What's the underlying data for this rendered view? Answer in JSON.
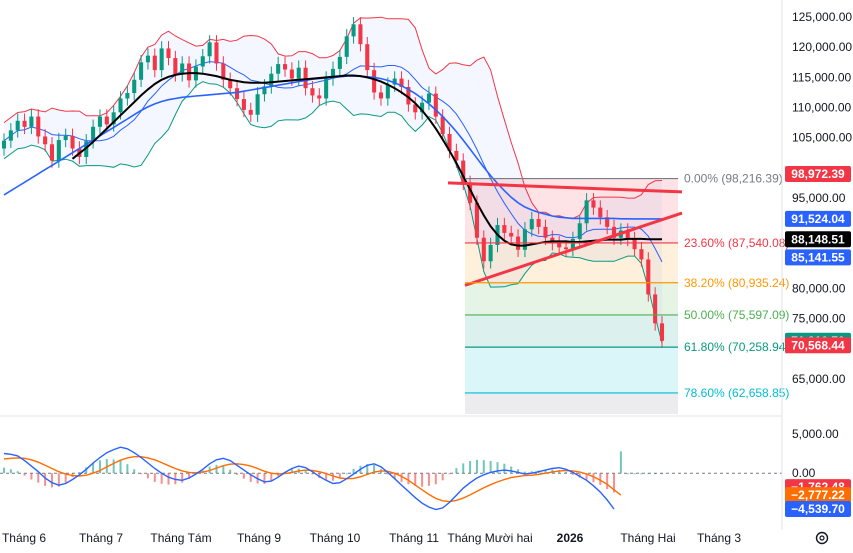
{
  "chart_data": {
    "type": "line",
    "subtype": "candlestick-with-indicators",
    "price_ticks": [
      "125,000.00",
      "120,000.00",
      "115,000.00",
      "110,000.00",
      "105,000.00",
      "95,000.00",
      "80,000.00",
      "75,000.00",
      "65,000.00"
    ],
    "price_tick_values": [
      125000,
      120000,
      115000,
      110000,
      105000,
      95000,
      80000,
      75000,
      65000
    ],
    "price_range": [
      59500,
      127000
    ],
    "time_labels": [
      "Tháng 6",
      "Tháng 7",
      "Tháng Tám",
      "Tháng 9",
      "Tháng 10",
      "Tháng 11",
      "Tháng Mười hai",
      "2026",
      "Tháng Hai",
      "Tháng 3"
    ],
    "time_label_bold": [
      false,
      false,
      false,
      false,
      false,
      false,
      false,
      true,
      false,
      false
    ],
    "fibonacci": [
      {
        "label": "0.00% (98,216.39)",
        "value": 98216.39,
        "color": "#787b86"
      },
      {
        "label": "23.60% (87,540.08)",
        "value": 87540.08,
        "color": "#f23645"
      },
      {
        "label": "38.20% (80,935.24)",
        "value": 80935.24,
        "color": "#ff9800"
      },
      {
        "label": "50.00% (75,597.09)",
        "value": 75597.09,
        "color": "#4caf50"
      },
      {
        "label": "61.80% (70,258.94)",
        "value": 70258.94,
        "color": "#089981"
      },
      {
        "label": "78.60% (62,658.85)",
        "value": 62658.85,
        "color": "#00bcd4"
      }
    ],
    "price_badges": [
      {
        "text": "98,972.39",
        "value": 98972.39,
        "bg": "#f23645"
      },
      {
        "text": "91,524.04",
        "value": 91524.04,
        "bg": "#2962ff"
      },
      {
        "text": "88,148.51",
        "value": 88148.51,
        "bg": "#000000"
      },
      {
        "text": "85,141.55",
        "value": 85141.55,
        "bg": "#2962ff"
      },
      {
        "text": "71,310.70",
        "value": 71310.7,
        "bg": "#089981"
      },
      {
        "text": "70,568.44",
        "value": 70568.44,
        "bg": "#f23645"
      }
    ],
    "trendlines": [
      {
        "from": {
          "x": "Tháng 11",
          "y": 97500
        },
        "to": {
          "x": "Tháng 3",
          "y": 96000
        },
        "color": "#f23645"
      },
      {
        "from": {
          "x": "Tháng Mười hai",
          "y": 80500
        },
        "to": {
          "x": "Tháng 3",
          "y": 92500
        },
        "color": "#f23645"
      }
    ],
    "candles_close": [
      104500,
      106200,
      107800,
      106800,
      108500,
      105200,
      103900,
      101200,
      104600,
      105300,
      103200,
      101800,
      104400,
      106800,
      108500,
      107200,
      109200,
      111500,
      112400,
      114600,
      117500,
      118600,
      116200,
      119800,
      118200,
      115500,
      117300,
      114500,
      116800,
      118500,
      120800,
      117300,
      114600,
      113200,
      111400,
      109600,
      108800,
      112200,
      113500,
      115600,
      117200,
      116300,
      114800,
      116600,
      113200,
      112000,
      111500,
      114800,
      116400,
      118400,
      121800,
      123800,
      120500,
      116200,
      112500,
      111500,
      113800,
      114800,
      113400,
      110500,
      109200,
      110800,
      112300,
      108500,
      105600,
      102800,
      101200,
      97500,
      94200,
      88400,
      84500,
      87200,
      90500,
      89200,
      88600,
      86400,
      89800,
      91500,
      90200,
      88400,
      87500,
      86800,
      86500,
      88200,
      90800,
      94600,
      93400,
      91800,
      90200,
      88400,
      89600,
      88200,
      86500,
      84800,
      79000,
      74200,
      71310
    ],
    "candles_open": [
      103200,
      104500,
      106200,
      107800,
      106800,
      108500,
      105200,
      103900,
      101200,
      104600,
      105300,
      103200,
      101800,
      104400,
      106800,
      108500,
      107200,
      109200,
      111500,
      112400,
      114600,
      117500,
      118600,
      116200,
      119800,
      118200,
      115500,
      117300,
      114500,
      116800,
      118500,
      120800,
      117300,
      114600,
      113200,
      111400,
      109600,
      108800,
      112200,
      113500,
      115600,
      117200,
      116300,
      114800,
      116600,
      113200,
      112000,
      111500,
      114800,
      116400,
      118400,
      121800,
      123800,
      120500,
      116200,
      112500,
      111500,
      113800,
      114800,
      113400,
      110500,
      109200,
      110800,
      112300,
      108500,
      105600,
      102800,
      101200,
      97500,
      94200,
      88400,
      84500,
      87200,
      90500,
      89200,
      88600,
      86400,
      89800,
      91500,
      90200,
      88400,
      87500,
      86800,
      86500,
      88200,
      90800,
      94600,
      93400,
      91800,
      90200,
      88400,
      89600,
      88200,
      86500,
      84800,
      79000,
      74200
    ],
    "ma_black": [
      null,
      null,
      null,
      null,
      null,
      null,
      null,
      null,
      null,
      null,
      101500,
      102400,
      103300,
      104300,
      105400,
      106500,
      107600,
      108700,
      109800,
      110900,
      112000,
      113000,
      113900,
      114600,
      115100,
      115400,
      115600,
      115700,
      115700,
      115600,
      115400,
      115200,
      114900,
      114600,
      114400,
      114200,
      114100,
      114100,
      114100,
      114200,
      114300,
      114400,
      114500,
      114600,
      114700,
      114800,
      114900,
      115000,
      115100,
      115200,
      115300,
      115300,
      115200,
      115000,
      114700,
      114300,
      113800,
      113200,
      112500,
      111700,
      110700,
      109500,
      108100,
      106500,
      104700,
      102800,
      100800,
      98600,
      96400,
      94200,
      92100,
      90300,
      88900,
      87900,
      87300,
      87100,
      87100,
      87300,
      87500,
      87700,
      87800,
      87800,
      87800,
      87700,
      87700,
      87800,
      87900,
      88000,
      88100,
      88100,
      88100,
      88200,
      88200,
      88200,
      88150,
      88150,
      88150
    ],
    "ma_blue": [
      95500,
      96200,
      96900,
      97600,
      98300,
      99000,
      99700,
      100400,
      101100,
      101800,
      102500,
      103200,
      103900,
      104600,
      105300,
      106000,
      106700,
      107400,
      108100,
      108800,
      109500,
      110100,
      110600,
      111000,
      111300,
      111500,
      111700,
      111800,
      111900,
      112000,
      112100,
      112200,
      112300,
      112400,
      112500,
      112700,
      112900,
      113100,
      113300,
      113500,
      113700,
      113900,
      114100,
      114300,
      114500,
      114700,
      114800,
      114900,
      115000,
      115100,
      115200,
      115200,
      115200,
      115100,
      115000,
      114800,
      114500,
      114100,
      113600,
      113000,
      112300,
      111500,
      110600,
      109600,
      108500,
      107300,
      106000,
      104600,
      103100,
      101600,
      100100,
      98700,
      97400,
      96200,
      95100,
      94200,
      93500,
      93000,
      92600,
      92300,
      92000,
      91800,
      91700,
      91600,
      91600,
      91600,
      91600,
      91600,
      91600,
      91600,
      91550,
      91540,
      91530,
      91525,
      91524,
      91524,
      91524
    ],
    "macd": [
      2500,
      2400,
      2200,
      1600,
      900,
      200,
      -600,
      -1200,
      -1500,
      -1300,
      -800,
      -200,
      500,
      1300,
      2000,
      2600,
      3000,
      3300,
      3100,
      2600,
      2000,
      1300,
      600,
      0,
      -500,
      -800,
      -900,
      -600,
      -100,
      500,
      1200,
      1700,
      1900,
      1600,
      1000,
      400,
      -200,
      -700,
      -1100,
      -1000,
      -500,
      100,
      600,
      900,
      700,
      200,
      -400,
      -900,
      -1300,
      -1200,
      -700,
      -100,
      500,
      1000,
      1200,
      800,
      100,
      -700,
      -1500,
      -2300,
      -3100,
      -3800,
      -4300,
      -4600,
      -4400,
      -3700,
      -2800,
      -1900,
      -1200,
      -600,
      -200,
      100,
      300,
      400,
      300,
      100,
      -100,
      0,
      200,
      400,
      600,
      700,
      500,
      100,
      -400,
      -900,
      -1600,
      -2400,
      -3400,
      -4539.7
    ],
    "macd_signal": [
      1800,
      1900,
      1950,
      1900,
      1700,
      1400,
      1000,
      600,
      200,
      -100,
      -300,
      -350,
      -250,
      0,
      350,
      800,
      1250,
      1650,
      1950,
      2100,
      2100,
      1950,
      1700,
      1350,
      950,
      600,
      300,
      100,
      50,
      150,
      350,
      650,
      950,
      1150,
      1200,
      1100,
      900,
      600,
      250,
      0,
      -100,
      -50,
      100,
      300,
      400,
      350,
      200,
      -50,
      -350,
      -600,
      -700,
      -650,
      -450,
      -150,
      150,
      300,
      250,
      0,
      -400,
      -900,
      -1500,
      -2100,
      -2700,
      -3200,
      -3500,
      -3600,
      -3450,
      -3150,
      -2750,
      -2300,
      -1850,
      -1450,
      -1100,
      -800,
      -550,
      -400,
      -300,
      -250,
      -150,
      0,
      150,
      300,
      350,
      300,
      150,
      -100,
      -450,
      -900,
      -1400,
      -2100,
      -2777.22
    ],
    "macd_ticks": [
      "5,000.00",
      "0.00"
    ],
    "macd_tick_values": [
      5000,
      0
    ],
    "macd_range": [
      -5300,
      6500
    ],
    "macd_badges": [
      {
        "text": "−1,762.48",
        "value": -1762.48,
        "bg": "#f23645"
      },
      {
        "text": "−2,777.22",
        "value": -2777.22,
        "bg": "#ff6d00"
      },
      {
        "text": "−4,539.70",
        "value": -4539.7,
        "bg": "#2962ff"
      }
    ]
  },
  "icons": {
    "settings": "gear-icon"
  }
}
